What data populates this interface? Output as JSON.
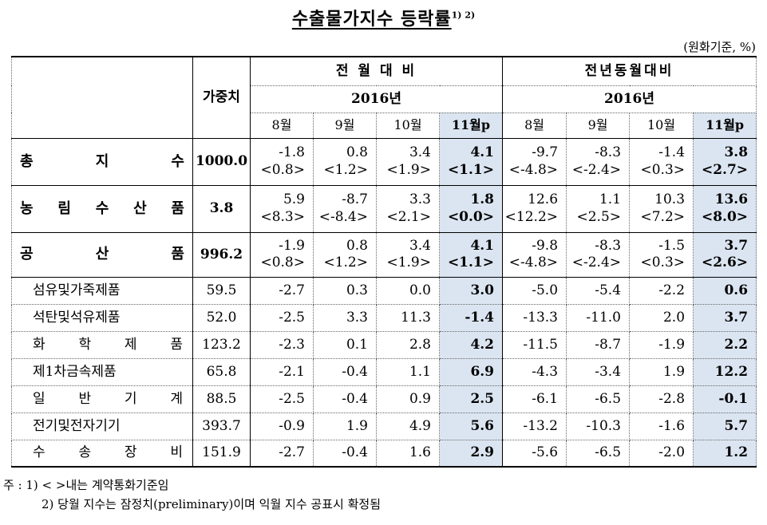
{
  "title": "수출물가지수 등락률",
  "title_sup": "1) 2)",
  "unit": "(원화기준, %)",
  "header": {
    "weight": "가중치",
    "mom": "전 월 대 비",
    "yoy": "전년동월대비",
    "year": "2016년",
    "months": [
      "8월",
      "9월",
      "10월",
      "11월p"
    ]
  },
  "rows": [
    {
      "name": "총 지 수",
      "weight": "1000.0",
      "mom": [
        "-1.8",
        "0.8",
        "3.4",
        "4.1"
      ],
      "mom_c": [
        "<0.8>",
        "<1.2>",
        "<1.9>",
        "<1.1>"
      ],
      "yoy": [
        "-9.7",
        "-8.3",
        "-1.4",
        "3.8"
      ],
      "yoy_c": [
        "<-4.8>",
        "<-2.4>",
        "<0.3>",
        "<2.7>"
      ]
    },
    {
      "name": "농 림 수 산 품",
      "weight": "3.8",
      "mom": [
        "5.9",
        "-8.7",
        "3.3",
        "1.8"
      ],
      "mom_c": [
        "<8.3>",
        "<-8.4>",
        "<2.1>",
        "<0.0>"
      ],
      "yoy": [
        "12.6",
        "1.1",
        "10.3",
        "13.6"
      ],
      "yoy_c": [
        "<12.2>",
        "<2.5>",
        "<7.2>",
        "<8.0>"
      ]
    },
    {
      "name": "공 산 품",
      "weight": "996.2",
      "mom": [
        "-1.9",
        "0.8",
        "3.4",
        "4.1"
      ],
      "mom_c": [
        "<0.8>",
        "<1.2>",
        "<1.9>",
        "<1.1>"
      ],
      "yoy": [
        "-9.8",
        "-8.3",
        "-1.5",
        "3.7"
      ],
      "yoy_c": [
        "<-4.8>",
        "<-2.4>",
        "<0.3>",
        "<2.6>"
      ]
    },
    {
      "name": "섬유및가죽제품",
      "weight": "59.5",
      "mom": [
        "-2.7",
        "0.3",
        "0.0",
        "3.0"
      ],
      "yoy": [
        "-5.0",
        "-5.4",
        "-2.2",
        "0.6"
      ]
    },
    {
      "name": "석탄및석유제품",
      "weight": "52.0",
      "mom": [
        "-2.5",
        "3.3",
        "11.3",
        "-1.4"
      ],
      "yoy": [
        "-13.3",
        "-11.0",
        "2.0",
        "3.7"
      ]
    },
    {
      "name": "화 학 제 품",
      "weight": "123.2",
      "mom": [
        "-2.3",
        "0.1",
        "2.8",
        "4.2"
      ],
      "yoy": [
        "-11.5",
        "-8.7",
        "-1.9",
        "2.2"
      ]
    },
    {
      "name": "제1차금속제품",
      "weight": "65.8",
      "mom": [
        "-2.1",
        "-0.4",
        "1.1",
        "6.9"
      ],
      "yoy": [
        "-4.3",
        "-3.4",
        "1.9",
        "12.2"
      ]
    },
    {
      "name": "일 반 기 계",
      "weight": "88.5",
      "mom": [
        "-2.5",
        "-0.4",
        "0.9",
        "2.5"
      ],
      "yoy": [
        "-6.1",
        "-6.5",
        "-2.8",
        "-0.1"
      ]
    },
    {
      "name": "전기및전자기기",
      "weight": "393.7",
      "mom": [
        "-0.9",
        "1.9",
        "4.9",
        "5.6"
      ],
      "yoy": [
        "-13.2",
        "-10.3",
        "-1.6",
        "5.7"
      ]
    },
    {
      "name": "수 송 장 비",
      "weight": "151.9",
      "mom": [
        "-2.7",
        "-0.4",
        "1.6",
        "2.9"
      ],
      "yoy": [
        "-5.6",
        "-6.5",
        "-2.0",
        "1.2"
      ]
    }
  ],
  "notes": [
    "주 : 1) < >내는 계약통화기준임",
    "2) 당월 지수는 잠정치(preliminary)이며 익월 지수 공표시 확정됨"
  ]
}
